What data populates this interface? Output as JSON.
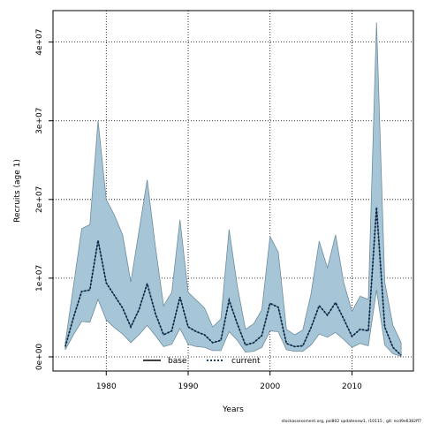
{
  "chart_data": {
    "type": "line",
    "title": "",
    "xlabel": "Years",
    "ylabel": "Recruits (age 1)",
    "xlim": [
      1973.5,
      2017.5
    ],
    "ylim": [
      -1800000,
      44000000
    ],
    "xticks": [
      1980,
      1990,
      2000,
      2010
    ],
    "yticks": [
      0,
      10000000,
      20000000,
      30000000,
      40000000
    ],
    "ytick_labels": [
      "0e+00",
      "1e+07",
      "2e+07",
      "3e+07",
      "4e+07"
    ],
    "grid": true,
    "legend_position": "bottom",
    "x": [
      1975,
      1976,
      1977,
      1978,
      1979,
      1980,
      1981,
      1982,
      1983,
      1984,
      1985,
      1986,
      1987,
      1988,
      1989,
      1990,
      1991,
      1992,
      1993,
      1994,
      1995,
      1996,
      1997,
      1998,
      1999,
      2000,
      2001,
      2002,
      2003,
      2004,
      2005,
      2006,
      2007,
      2008,
      2009,
      2010,
      2011,
      2012,
      2013,
      2014,
      2015,
      2016
    ],
    "band": {
      "lower": [
        900000,
        2800000,
        4500000,
        4400000,
        7300000,
        4700000,
        3700000,
        2900000,
        1800000,
        2800000,
        4000000,
        2700000,
        1300000,
        1600000,
        3600000,
        1600000,
        1300000,
        1200000,
        800000,
        800000,
        3200000,
        2100000,
        600000,
        700000,
        1200000,
        3300000,
        3200000,
        900000,
        700000,
        700000,
        1500000,
        2900000,
        2500000,
        3100000,
        2200000,
        1200000,
        1700000,
        1400000,
        8500000,
        1500000,
        400000,
        50000
      ],
      "upper": [
        1800000,
        9000000,
        16300000,
        16800000,
        30000000,
        20000000,
        18000000,
        15500000,
        9500000,
        16000000,
        22500000,
        14000000,
        6500000,
        8200000,
        17400000,
        8200000,
        7200000,
        6200000,
        3800000,
        4800000,
        16200000,
        9000000,
        3500000,
        4200000,
        6000000,
        15300000,
        13300000,
        3500000,
        2800000,
        3400000,
        8000000,
        14700000,
        11300000,
        15500000,
        9400000,
        5800000,
        7700000,
        7300000,
        42500000,
        9500000,
        4000000,
        1800000
      ]
    },
    "series": [
      {
        "name": "base",
        "values": [
          1300000,
          5000000,
          8300000,
          8500000,
          14800000,
          9400000,
          7800000,
          6200000,
          3800000,
          6000000,
          9300000,
          5500000,
          2800000,
          3300000,
          7600000,
          3800000,
          3200000,
          2800000,
          1800000,
          2100000,
          7200000,
          4200000,
          1500000,
          1800000,
          2700000,
          6800000,
          6300000,
          1700000,
          1300000,
          1400000,
          3700000,
          6500000,
          5300000,
          6900000,
          4800000,
          2600000,
          3500000,
          3300000,
          19000000,
          3800000,
          1200000,
          200000
        ]
      },
      {
        "name": "current",
        "values": [
          1300000,
          5000000,
          8300000,
          8500000,
          14800000,
          9400000,
          7800000,
          6200000,
          3800000,
          6000000,
          9300000,
          5500000,
          2800000,
          3300000,
          7600000,
          3800000,
          3200000,
          2800000,
          1800000,
          2100000,
          7200000,
          4200000,
          1500000,
          1800000,
          2700000,
          6800000,
          6300000,
          1700000,
          1300000,
          1400000,
          3700000,
          6500000,
          5300000,
          6900000,
          4800000,
          2600000,
          3500000,
          3300000,
          19000000,
          3800000,
          1200000,
          200000
        ]
      }
    ],
    "colors": {
      "band_fill": "#a6c6d8",
      "band_edge": "#6e8c9c",
      "base_line": "#000000",
      "current_line": "#00264c",
      "grid": "#000000"
    },
    "footnote": "stockassessment.org, pol802 updatenew1, r10115 , git: ecd9e6382ff7"
  }
}
